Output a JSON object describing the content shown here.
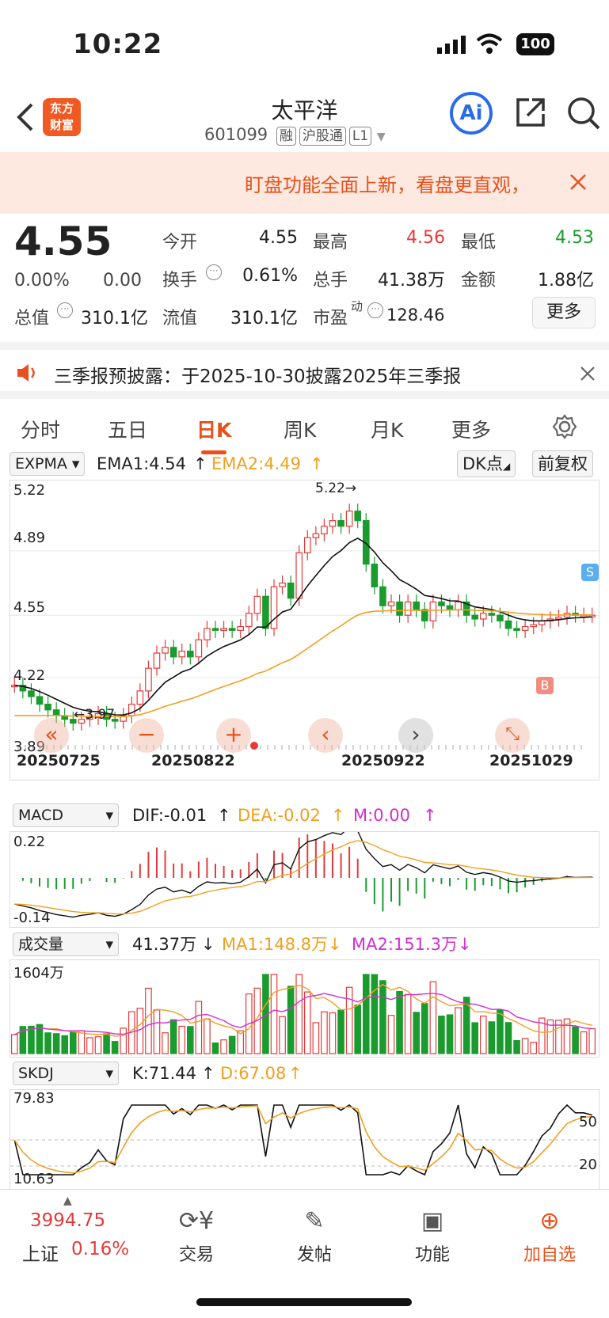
{
  "status": {
    "time": "10:22",
    "battery": "100"
  },
  "header": {
    "title": "太平洋",
    "code": "601099",
    "tags": [
      "融",
      "沪股通",
      "L1"
    ],
    "logo": "东方\n财富",
    "ai": "Ai"
  },
  "banner": {
    "text": "盯盘功能全面上新，看盘更直观，"
  },
  "quote": {
    "price": "4.55",
    "pct": "0.00%",
    "chg": "0.00",
    "fields": {
      "open_label": "今开",
      "open": "4.55",
      "high_label": "最高",
      "high": "4.56",
      "low_label": "最低",
      "low": "4.53",
      "turnover_label": "换手",
      "turnover": "0.61%",
      "volume_label": "总手",
      "volume": "41.38万",
      "amount_label": "金额",
      "amount": "1.88亿",
      "mktcap_label": "总值",
      "mktcap": "310.1亿",
      "float_label": "流值",
      "float": "310.1亿",
      "pe_label": "市盈",
      "pe_sup": "动",
      "pe": "128.46"
    },
    "more": "更多"
  },
  "notice": {
    "text": "三季报预披露：于2025-10-30披露2025年三季报"
  },
  "tabs": [
    {
      "label": "分时"
    },
    {
      "label": "五日"
    },
    {
      "label": "日K"
    },
    {
      "label": "周K"
    },
    {
      "label": "月K"
    },
    {
      "label": "更多"
    }
  ],
  "kline": {
    "indicator": "EXPMA",
    "ema1": "EMA1:4.54",
    "ema2": "EMA2:4.49",
    "dk": "DK点",
    "adjust": "前复权",
    "ylabels": [
      "5.22",
      "4.89",
      "4.55",
      "4.22",
      "3.89"
    ],
    "xlabels": [
      "20250725",
      "20250822",
      "20250922",
      "20251029"
    ],
    "max_mark": "5.22→",
    "min_mark": "←3.97",
    "buy": "B",
    "sell": "S"
  },
  "macd": {
    "name": "MACD",
    "dif": "DIF:-0.01",
    "dea": "DEA:-0.02",
    "m": "M:0.00",
    "ytop": "0.22",
    "ybot": "-0.14"
  },
  "vol": {
    "name": "成交量",
    "v": "41.37万",
    "ma1": "MA1:148.8万",
    "ma2": "MA2:151.3万",
    "ytop": "1604万"
  },
  "skdj": {
    "name": "SKDJ",
    "k": "K:71.44",
    "d": "D:67.08",
    "ytop": "79.83",
    "ybot": "10.63",
    "l50": "50",
    "l20": "20"
  },
  "bottom": {
    "index_val": "3994.75",
    "index_name": "上证",
    "index_pct": "0.16%",
    "trade": "交易",
    "post": "发帖",
    "func": "功能",
    "add": "加自选"
  },
  "colors": {
    "up": "#e33b3b",
    "down": "#1a9b2e",
    "accent": "#e8501c",
    "ema2": "#f0a020",
    "ma2": "#d030d0"
  },
  "chart_data": {
    "type": "candlestick",
    "x_range": [
      "20250725",
      "20251029"
    ],
    "ylim": [
      3.89,
      5.22
    ],
    "closes": [
      4.18,
      4.15,
      4.12,
      4.08,
      4.05,
      4.02,
      4.0,
      3.98,
      4.0,
      4.01,
      4.03,
      4.0,
      3.99,
      4.02,
      4.08,
      4.15,
      4.27,
      4.35,
      4.38,
      4.33,
      4.36,
      4.33,
      4.42,
      4.48,
      4.47,
      4.48,
      4.47,
      4.49,
      4.56,
      4.65,
      4.48,
      4.7,
      4.72,
      4.64,
      4.88,
      4.96,
      4.98,
      5.02,
      5.05,
      5.02,
      5.1,
      5.05,
      4.82,
      4.7,
      4.6,
      4.62,
      4.55,
      4.62,
      4.58,
      4.52,
      4.62,
      4.6,
      4.58,
      4.62,
      4.55,
      4.53,
      4.56,
      4.55,
      4.52,
      4.48,
      4.47,
      4.49,
      4.5,
      4.52,
      4.53,
      4.54,
      4.56,
      4.55,
      4.55,
      4.55
    ]
  }
}
